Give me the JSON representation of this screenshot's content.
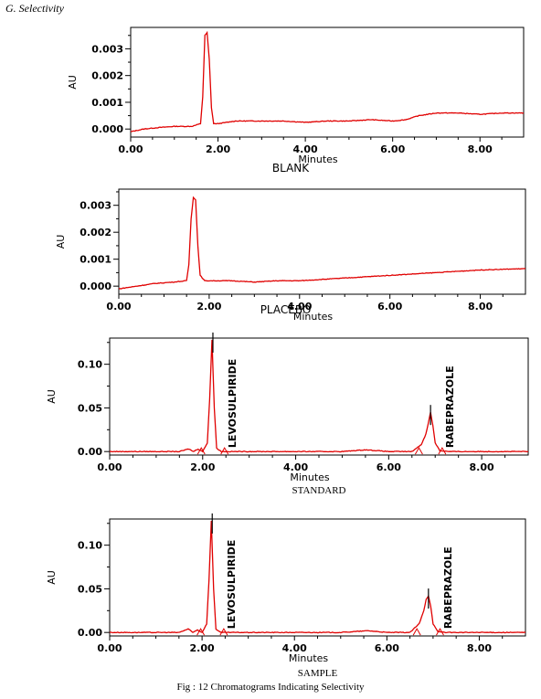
{
  "heading": "G.   Selectivity",
  "figure_caption": "Fig : 12 Chromatograms Indicating Selectivity",
  "trace_color": "#e00000",
  "chart_data": [
    {
      "type": "line",
      "name": "BLANK",
      "xlabel": "Minutes",
      "ylabel": "AU",
      "xlim": [
        0,
        9
      ],
      "ylim": [
        -0.0003,
        0.0038
      ],
      "x_ticks": [
        "0.00",
        "2.00",
        "4.00",
        "6.00",
        "8.00"
      ],
      "y_ticks": [
        "0.000",
        "0.001",
        "0.002",
        "0.003"
      ],
      "x": [
        0.0,
        0.3,
        0.6,
        1.0,
        1.4,
        1.6,
        1.65,
        1.7,
        1.75,
        1.8,
        1.85,
        1.9,
        2.0,
        2.4,
        3.0,
        3.5,
        4.0,
        4.5,
        5.0,
        5.5,
        6.0,
        6.3,
        6.6,
        7.0,
        7.5,
        8.0,
        8.5,
        9.0
      ],
      "y": [
        -0.0001,
        0.0,
        5e-05,
        0.0001,
        0.0001,
        0.0002,
        0.0012,
        0.0035,
        0.0036,
        0.0026,
        0.0008,
        0.0002,
        0.0002,
        0.0003,
        0.0003,
        0.0003,
        0.00025,
        0.0003,
        0.0003,
        0.00035,
        0.0003,
        0.00035,
        0.0005,
        0.0006,
        0.0006,
        0.00055,
        0.0006,
        0.0006
      ],
      "peaks": []
    },
    {
      "type": "line",
      "name": "PLACEBO",
      "xlabel": "Minutes",
      "ylabel": "AU",
      "xlim": [
        0,
        9
      ],
      "ylim": [
        -0.0003,
        0.0036
      ],
      "x_ticks": [
        "0.00",
        "2.00",
        "4.00",
        "6.00",
        "8.00"
      ],
      "y_ticks": [
        "0.000",
        "0.001",
        "0.002",
        "0.003"
      ],
      "x": [
        0.0,
        0.4,
        0.8,
        1.2,
        1.5,
        1.55,
        1.6,
        1.65,
        1.7,
        1.75,
        1.8,
        1.9,
        2.0,
        2.5,
        3.0,
        3.5,
        4.0,
        5.0,
        6.0,
        7.0,
        8.0,
        9.0
      ],
      "y": [
        -0.0001,
        0.0,
        0.0001,
        0.00015,
        0.0002,
        0.0008,
        0.0025,
        0.0033,
        0.0032,
        0.0015,
        0.0004,
        0.0002,
        0.0002,
        0.0002,
        0.00015,
        0.0002,
        0.0002,
        0.0003,
        0.0004,
        0.0005,
        0.0006,
        0.00065
      ],
      "peaks": []
    },
    {
      "type": "line",
      "name": "STANDARD",
      "xlabel": "Minutes",
      "ylabel": "AU",
      "xlim": [
        0,
        9
      ],
      "ylim": [
        -0.004,
        0.13
      ],
      "x_ticks": [
        "0.00",
        "2.00",
        "4.00",
        "6.00",
        "8.00"
      ],
      "y_ticks": [
        "0.00",
        "0.05",
        "0.10"
      ],
      "x": [
        0.0,
        1.5,
        1.7,
        1.8,
        1.9,
        2.0,
        2.1,
        2.15,
        2.2,
        2.25,
        2.3,
        2.4,
        2.6,
        3.0,
        4.0,
        5.0,
        5.5,
        6.0,
        6.5,
        6.7,
        6.8,
        6.85,
        6.9,
        6.95,
        7.0,
        7.1,
        7.3,
        8.0,
        9.0
      ],
      "y": [
        0.0,
        0.0,
        0.003,
        0.0,
        0.003,
        0.0,
        0.01,
        0.06,
        0.128,
        0.05,
        0.004,
        0.0,
        0.0,
        0.0,
        0.0,
        0.0,
        0.002,
        0.0,
        0.0,
        0.008,
        0.02,
        0.032,
        0.045,
        0.03,
        0.01,
        0.001,
        0.0,
        0.0,
        0.0
      ],
      "peaks": [
        {
          "label": "LEVOSULPIRIDE",
          "x": 2.22
        },
        {
          "label": "RABEPRAZOLE",
          "x": 6.9
        }
      ]
    },
    {
      "type": "line",
      "name": "SAMPLE",
      "xlabel": "Minutes",
      "ylabel": "AU",
      "xlim": [
        0,
        9
      ],
      "ylim": [
        -0.004,
        0.13
      ],
      "x_ticks": [
        "0.00",
        "2.00",
        "4.00",
        "6.00",
        "8.00"
      ],
      "y_ticks": [
        "0.00",
        "0.05",
        "0.10"
      ],
      "x": [
        0.0,
        1.5,
        1.7,
        1.8,
        1.9,
        2.0,
        2.1,
        2.15,
        2.2,
        2.25,
        2.3,
        2.4,
        2.6,
        3.0,
        4.0,
        5.0,
        5.6,
        6.0,
        6.5,
        6.7,
        6.8,
        6.85,
        6.9,
        6.95,
        7.0,
        7.1,
        7.3,
        8.0,
        9.0
      ],
      "y": [
        0.0,
        0.0,
        0.004,
        0.0,
        0.003,
        0.0,
        0.01,
        0.06,
        0.128,
        0.05,
        0.004,
        0.0,
        0.0,
        0.0,
        0.0,
        0.0,
        0.002,
        0.0,
        0.0,
        0.01,
        0.025,
        0.038,
        0.042,
        0.03,
        0.01,
        0.001,
        0.0,
        0.0,
        0.0
      ],
      "peaks": [
        {
          "label": "LEVOSULPIRIDE",
          "x": 2.22
        },
        {
          "label": "RABEPRAZOLE",
          "x": 6.9
        }
      ]
    }
  ]
}
